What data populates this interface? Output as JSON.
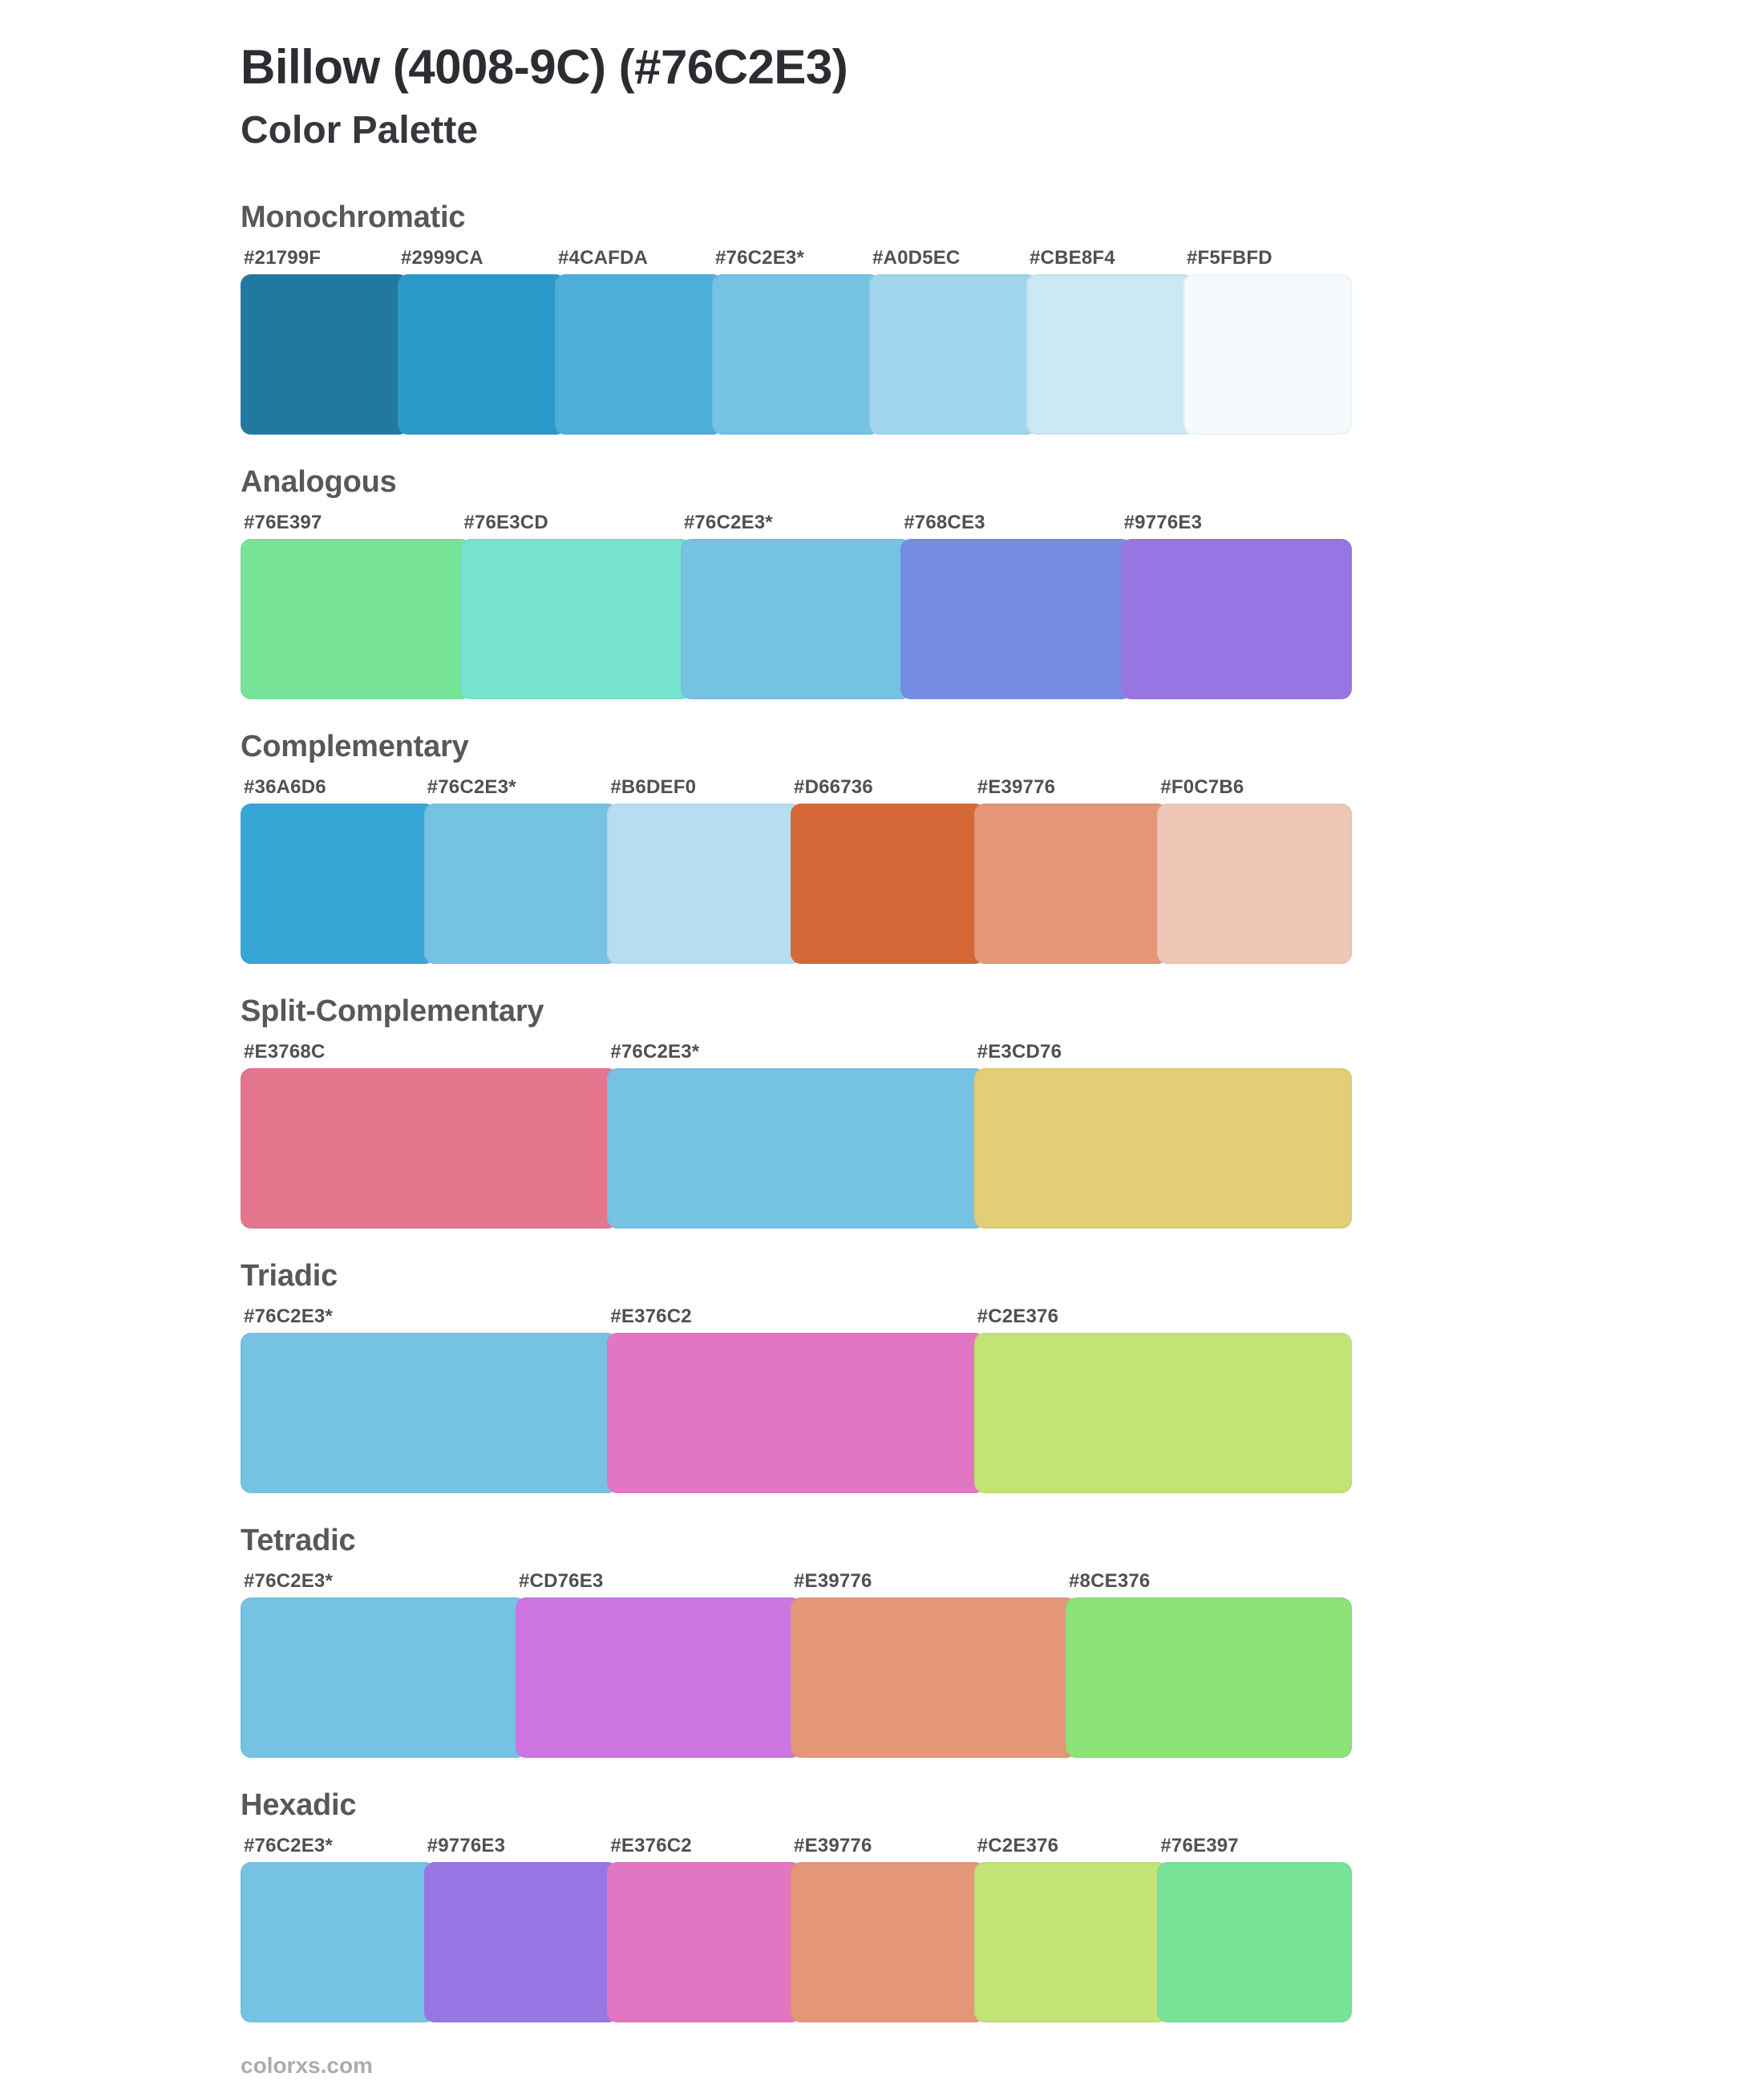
{
  "page": {
    "title": "Billow (4008-9C) (#76C2E3)",
    "subtitle": "Color Palette",
    "footer": "colorxs.com"
  },
  "sections": [
    {
      "name": "Monochromatic",
      "swatches": [
        {
          "label": "#21799F",
          "color": "#21799F"
        },
        {
          "label": "#2999CA",
          "color": "#2999CA"
        },
        {
          "label": "#4CAFDA",
          "color": "#4CAFDA"
        },
        {
          "label": "#76C2E3*",
          "color": "#76C2E3"
        },
        {
          "label": "#A0D5EC",
          "color": "#A0D5EC"
        },
        {
          "label": "#CBE8F4",
          "color": "#CBE8F4"
        },
        {
          "label": "#F5FBFD",
          "color": "#F5FBFD"
        }
      ]
    },
    {
      "name": "Analogous",
      "swatches": [
        {
          "label": "#76E397",
          "color": "#76E397"
        },
        {
          "label": "#76E3CD",
          "color": "#76E3CD"
        },
        {
          "label": "#76C2E3*",
          "color": "#76C2E3"
        },
        {
          "label": "#768CE3",
          "color": "#768CE3"
        },
        {
          "label": "#9776E3",
          "color": "#9776E3"
        }
      ]
    },
    {
      "name": "Complementary",
      "swatches": [
        {
          "label": "#36A6D6",
          "color": "#36A6D6"
        },
        {
          "label": "#76C2E3*",
          "color": "#76C2E3"
        },
        {
          "label": "#B6DEF0",
          "color": "#B6DEF0"
        },
        {
          "label": "#D66736",
          "color": "#D66736"
        },
        {
          "label": "#E39776",
          "color": "#E39776"
        },
        {
          "label": "#F0C7B6",
          "color": "#F0C7B6"
        }
      ]
    },
    {
      "name": "Split-Complementary",
      "swatches": [
        {
          "label": "#E3768C",
          "color": "#E3768C"
        },
        {
          "label": "#76C2E3*",
          "color": "#76C2E3"
        },
        {
          "label": "#E3CD76",
          "color": "#E3CD76"
        }
      ]
    },
    {
      "name": "Triadic",
      "swatches": [
        {
          "label": "#76C2E3*",
          "color": "#76C2E3"
        },
        {
          "label": "#E376C2",
          "color": "#E376C2"
        },
        {
          "label": "#C2E376",
          "color": "#C2E376"
        }
      ]
    },
    {
      "name": "Tetradic",
      "swatches": [
        {
          "label": "#76C2E3*",
          "color": "#76C2E3"
        },
        {
          "label": "#CD76E3",
          "color": "#CD76E3"
        },
        {
          "label": "#E39776",
          "color": "#E39776"
        },
        {
          "label": "#8CE376",
          "color": "#8CE376"
        }
      ]
    },
    {
      "name": "Hexadic",
      "swatches": [
        {
          "label": "#76C2E3*",
          "color": "#76C2E3"
        },
        {
          "label": "#9776E3",
          "color": "#9776E3"
        },
        {
          "label": "#E376C2",
          "color": "#E376C2"
        },
        {
          "label": "#E39776",
          "color": "#E39776"
        },
        {
          "label": "#C2E376",
          "color": "#C2E376"
        },
        {
          "label": "#76E397",
          "color": "#76E397"
        }
      ]
    }
  ]
}
